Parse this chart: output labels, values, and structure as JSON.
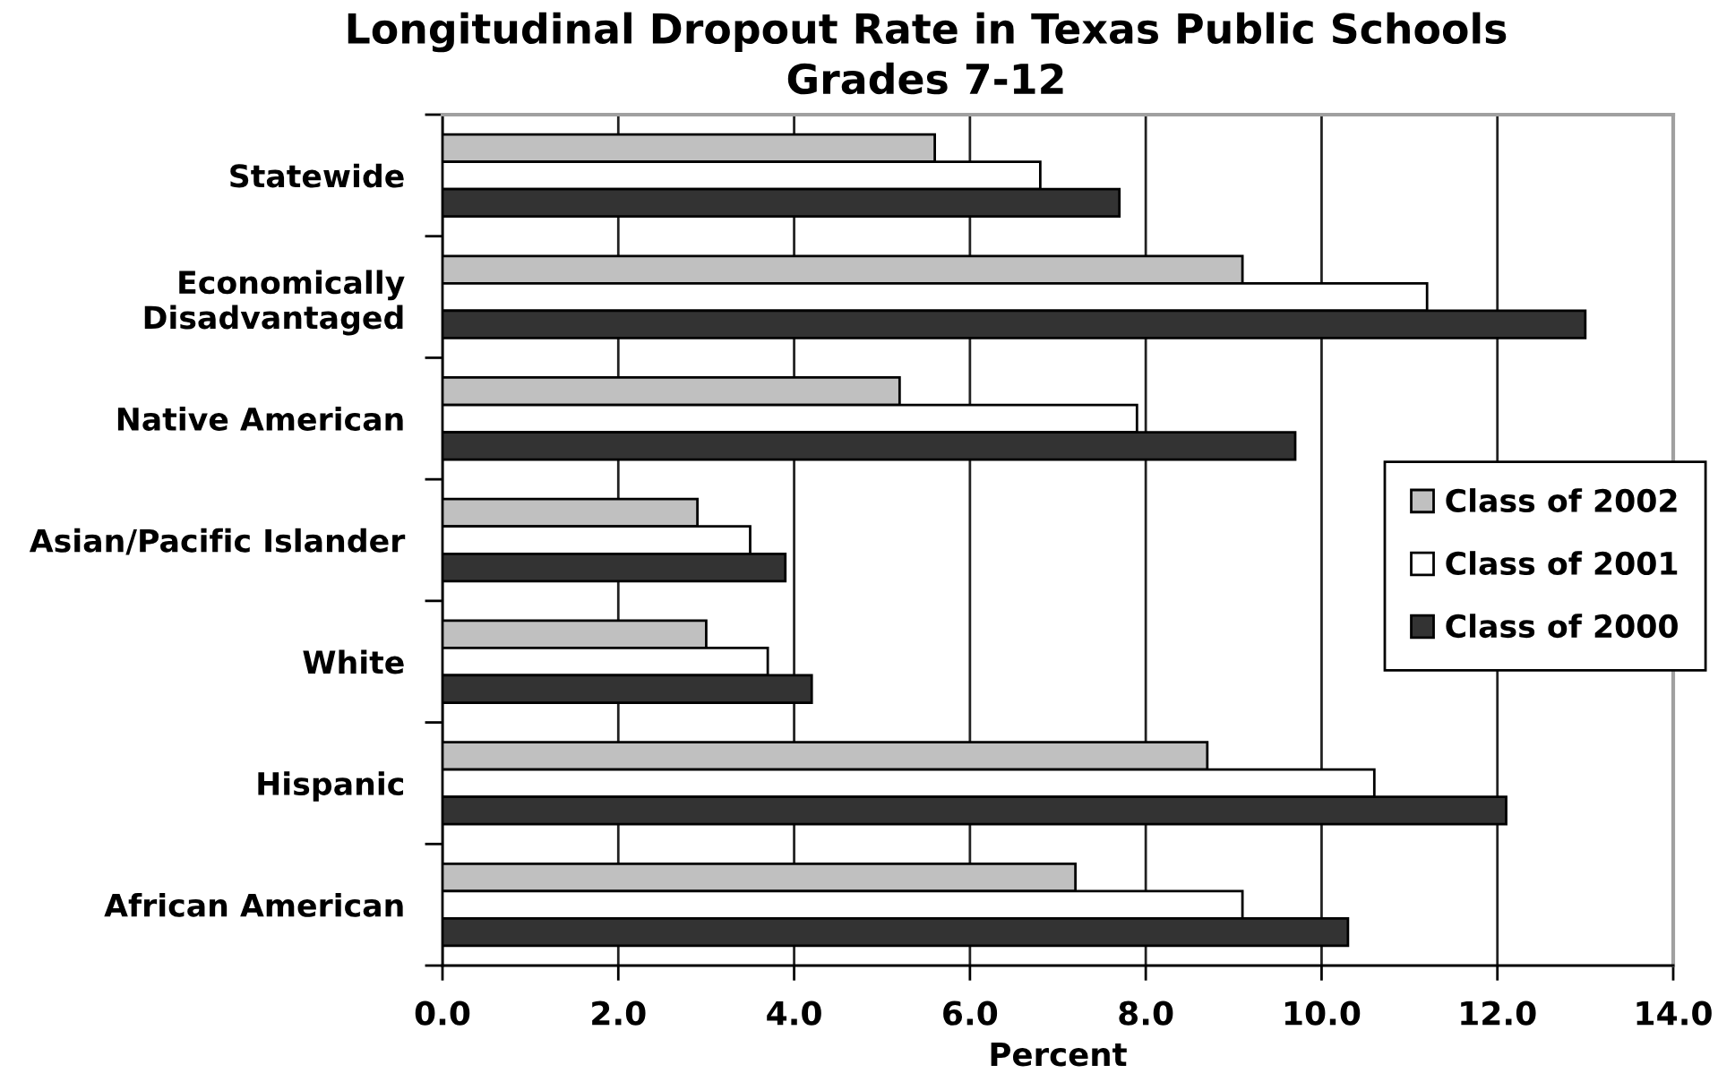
{
  "chart_data": {
    "type": "bar",
    "orientation": "horizontal",
    "title": "Longitudinal Dropout Rate in Texas Public Schools",
    "subtitle": "Grades 7-12",
    "xlabel": "Percent",
    "categories": [
      "Statewide",
      "Economically\nDisadvantaged",
      "Native American",
      "Asian/Pacific Islander",
      "White",
      "Hispanic",
      "African American"
    ],
    "series": [
      {
        "name": "Class of 2002",
        "color": "#c0c0c0",
        "values": [
          5.6,
          9.1,
          5.2,
          2.9,
          3.0,
          8.7,
          7.2
        ]
      },
      {
        "name": "Class of 2001",
        "color": "#ffffff",
        "values": [
          6.8,
          11.2,
          7.9,
          3.5,
          3.7,
          10.6,
          9.1
        ]
      },
      {
        "name": "Class of 2000",
        "color": "#333333",
        "values": [
          7.7,
          13.0,
          9.7,
          3.9,
          4.2,
          12.1,
          10.3
        ]
      }
    ],
    "xlim": [
      0,
      14
    ],
    "xticks": [
      {
        "value": 0,
        "label": "0.0"
      },
      {
        "value": 2,
        "label": "2.0"
      },
      {
        "value": 4,
        "label": "4.0"
      },
      {
        "value": 6,
        "label": "6.0"
      },
      {
        "value": 8,
        "label": "8.0"
      },
      {
        "value": 10,
        "label": "10.0"
      },
      {
        "value": 12,
        "label": "12.0"
      },
      {
        "value": 14,
        "label": "14.0"
      }
    ],
    "grid": "x",
    "legend": "right"
  }
}
